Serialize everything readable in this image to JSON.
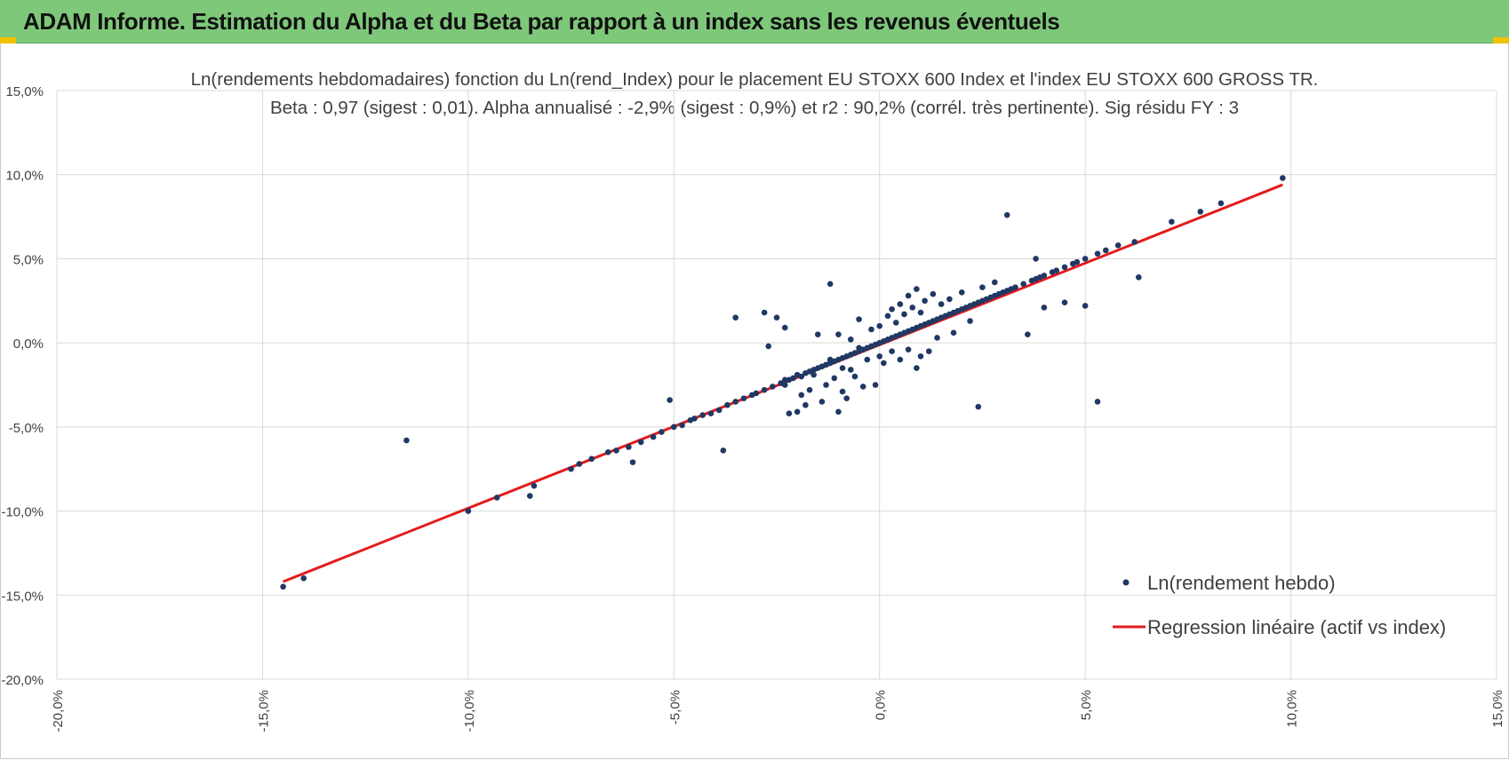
{
  "header": {
    "title": "ADAM Informe. Estimation du Alpha et du Beta par rapport à un index sans les revenus éventuels",
    "banner_color": "#7ec87a",
    "corner_color": "#f2c200"
  },
  "chart_data": {
    "type": "scatter",
    "title": "Ln(rendements hebdomadaires) fonction du Ln(rend_Index) pour le placement EU STOXX 600 Index et l'index EU STOXX 600 GROSS TR.",
    "subtitle": "Beta : 0,97 (sigest : 0,01). Alpha annualisé : -2,9% (sigest : 0,9%) et r2 : 90,2% (corrél. très pertinente). Sig résidu FY : 3",
    "xlabel": "",
    "ylabel": "",
    "xlim": [
      -20,
      15
    ],
    "ylim": [
      -20,
      15
    ],
    "x_ticks": [
      -20,
      -15,
      -10,
      -5,
      0,
      5,
      10,
      15
    ],
    "y_ticks": [
      15,
      10,
      5,
      0,
      -5,
      -10,
      -15,
      -20
    ],
    "x_tick_labels": [
      "-20,0%",
      "-15,0%",
      "-10,0%",
      "-5,0%",
      "0,0%",
      "5,0%",
      "10,0%",
      "15,0%"
    ],
    "y_tick_labels": [
      "15,0%",
      "10,0%",
      "5,0%",
      "0,0%",
      "-5,0%",
      "-10,0%",
      "-15,0%",
      "-20,0%"
    ],
    "grid": true,
    "legend_position": "bottom-right",
    "series": [
      {
        "name": "Ln(rendement hebdo)",
        "kind": "scatter",
        "color": "#203864",
        "points": [
          [
            -14.5,
            -14.5
          ],
          [
            -14.0,
            -14.0
          ],
          [
            -11.5,
            -5.8
          ],
          [
            -10.0,
            -10.0
          ],
          [
            -9.3,
            -9.2
          ],
          [
            -8.5,
            -9.1
          ],
          [
            -8.4,
            -8.5
          ],
          [
            -7.5,
            -7.5
          ],
          [
            -7.3,
            -7.2
          ],
          [
            -7.0,
            -6.9
          ],
          [
            -6.6,
            -6.5
          ],
          [
            -6.4,
            -6.4
          ],
          [
            -6.1,
            -6.2
          ],
          [
            -6.0,
            -7.1
          ],
          [
            -5.8,
            -5.9
          ],
          [
            -5.5,
            -5.6
          ],
          [
            -5.3,
            -5.3
          ],
          [
            -5.1,
            -3.4
          ],
          [
            -5.0,
            -5.0
          ],
          [
            -4.8,
            -4.9
          ],
          [
            -4.6,
            -4.6
          ],
          [
            -4.5,
            -4.5
          ],
          [
            -4.3,
            -4.3
          ],
          [
            -4.1,
            -4.2
          ],
          [
            -3.9,
            -4.0
          ],
          [
            -3.8,
            -6.4
          ],
          [
            -3.7,
            -3.7
          ],
          [
            -3.5,
            -3.5
          ],
          [
            -3.5,
            1.5
          ],
          [
            -3.3,
            -3.3
          ],
          [
            -3.1,
            -3.1
          ],
          [
            -3.0,
            -3.0
          ],
          [
            -2.8,
            1.8
          ],
          [
            -2.8,
            -2.8
          ],
          [
            -2.7,
            -0.2
          ],
          [
            -2.6,
            -2.6
          ],
          [
            -2.5,
            1.5
          ],
          [
            -2.4,
            -2.4
          ],
          [
            -2.3,
            -2.2
          ],
          [
            -2.3,
            -2.5
          ],
          [
            -2.2,
            -2.2
          ],
          [
            -2.2,
            -4.2
          ],
          [
            -2.3,
            0.9
          ],
          [
            -2.1,
            -2.1
          ],
          [
            -2.0,
            -1.9
          ],
          [
            -2.0,
            -4.1
          ],
          [
            -1.9,
            -2.0
          ],
          [
            -1.9,
            -3.1
          ],
          [
            -1.8,
            -1.8
          ],
          [
            -1.8,
            -3.7
          ],
          [
            -1.7,
            -1.7
          ],
          [
            -1.7,
            -2.8
          ],
          [
            -1.6,
            -1.6
          ],
          [
            -1.6,
            -1.9
          ],
          [
            -1.5,
            -1.5
          ],
          [
            -1.5,
            0.5
          ],
          [
            -1.4,
            -1.4
          ],
          [
            -1.4,
            -3.5
          ],
          [
            -1.3,
            -1.3
          ],
          [
            -1.3,
            -2.5
          ],
          [
            -1.2,
            -1.2
          ],
          [
            -1.2,
            -1.0
          ],
          [
            -1.2,
            3.5
          ],
          [
            -1.1,
            -1.1
          ],
          [
            -1.1,
            -2.1
          ],
          [
            -1.0,
            -1.0
          ],
          [
            -1.0,
            -4.1
          ],
          [
            -1.0,
            0.5
          ],
          [
            -0.9,
            -0.9
          ],
          [
            -0.9,
            -2.9
          ],
          [
            -0.9,
            -1.5
          ],
          [
            -0.8,
            -0.8
          ],
          [
            -0.8,
            -3.3
          ],
          [
            -0.7,
            -0.7
          ],
          [
            -0.7,
            -1.6
          ],
          [
            -0.7,
            0.2
          ],
          [
            -0.6,
            -0.6
          ],
          [
            -0.6,
            -2.0
          ],
          [
            -0.5,
            -0.5
          ],
          [
            -0.5,
            -0.3
          ],
          [
            -0.5,
            1.4
          ],
          [
            -0.4,
            -0.4
          ],
          [
            -0.4,
            -2.6
          ],
          [
            -0.3,
            -0.3
          ],
          [
            -0.3,
            -1.0
          ],
          [
            -0.2,
            -0.2
          ],
          [
            -0.2,
            0.8
          ],
          [
            -0.1,
            -0.1
          ],
          [
            -0.1,
            -2.5
          ],
          [
            0.0,
            0.0
          ],
          [
            0.0,
            1.0
          ],
          [
            0.0,
            -0.8
          ],
          [
            0.1,
            0.1
          ],
          [
            0.1,
            -1.2
          ],
          [
            0.2,
            0.2
          ],
          [
            0.2,
            1.6
          ],
          [
            0.3,
            0.3
          ],
          [
            0.3,
            -0.5
          ],
          [
            0.3,
            2.0
          ],
          [
            0.4,
            0.4
          ],
          [
            0.4,
            1.2
          ],
          [
            0.5,
            0.5
          ],
          [
            0.5,
            -1.0
          ],
          [
            0.5,
            2.3
          ],
          [
            0.6,
            0.6
          ],
          [
            0.6,
            1.7
          ],
          [
            0.7,
            0.7
          ],
          [
            0.7,
            2.8
          ],
          [
            0.7,
            -0.4
          ],
          [
            0.8,
            0.8
          ],
          [
            0.8,
            2.1
          ],
          [
            0.9,
            0.9
          ],
          [
            0.9,
            3.2
          ],
          [
            0.9,
            -1.5
          ],
          [
            1.0,
            1.0
          ],
          [
            1.0,
            1.8
          ],
          [
            1.0,
            -0.8
          ],
          [
            1.1,
            1.1
          ],
          [
            1.1,
            2.5
          ],
          [
            1.2,
            1.2
          ],
          [
            1.2,
            -0.5
          ],
          [
            1.3,
            1.3
          ],
          [
            1.3,
            2.9
          ],
          [
            1.4,
            1.4
          ],
          [
            1.4,
            0.3
          ],
          [
            1.5,
            1.5
          ],
          [
            1.5,
            2.3
          ],
          [
            1.6,
            1.6
          ],
          [
            1.7,
            1.7
          ],
          [
            1.7,
            2.6
          ],
          [
            1.8,
            1.8
          ],
          [
            1.8,
            0.6
          ],
          [
            1.9,
            1.9
          ],
          [
            2.0,
            2.0
          ],
          [
            2.0,
            3.0
          ],
          [
            2.1,
            2.1
          ],
          [
            2.2,
            2.2
          ],
          [
            2.2,
            1.3
          ],
          [
            2.3,
            2.3
          ],
          [
            2.4,
            2.4
          ],
          [
            2.4,
            -3.8
          ],
          [
            2.5,
            2.5
          ],
          [
            2.5,
            3.3
          ],
          [
            2.6,
            2.6
          ],
          [
            2.7,
            2.7
          ],
          [
            2.8,
            2.8
          ],
          [
            2.8,
            3.6
          ],
          [
            2.9,
            2.9
          ],
          [
            3.0,
            3.0
          ],
          [
            3.1,
            3.1
          ],
          [
            3.1,
            7.6
          ],
          [
            3.2,
            3.2
          ],
          [
            3.3,
            3.3
          ],
          [
            3.5,
            3.5
          ],
          [
            3.6,
            0.5
          ],
          [
            3.7,
            3.7
          ],
          [
            3.8,
            3.8
          ],
          [
            3.8,
            5.0
          ],
          [
            3.9,
            3.9
          ],
          [
            4.0,
            4.0
          ],
          [
            4.0,
            2.1
          ],
          [
            4.2,
            4.2
          ],
          [
            4.3,
            4.3
          ],
          [
            4.5,
            4.5
          ],
          [
            4.5,
            2.4
          ],
          [
            4.7,
            4.7
          ],
          [
            4.8,
            4.8
          ],
          [
            5.0,
            5.0
          ],
          [
            5.0,
            2.2
          ],
          [
            5.3,
            5.3
          ],
          [
            5.3,
            -3.5
          ],
          [
            5.5,
            5.5
          ],
          [
            5.8,
            5.8
          ],
          [
            6.2,
            6.0
          ],
          [
            6.3,
            3.9
          ],
          [
            7.1,
            7.2
          ],
          [
            7.8,
            7.8
          ],
          [
            8.3,
            8.3
          ],
          [
            9.8,
            9.8
          ]
        ]
      },
      {
        "name": "Regression linéaire (actif vs index)",
        "kind": "line",
        "color": "#e41a1c",
        "points": [
          [
            -14.5,
            -14.2
          ],
          [
            9.8,
            9.4
          ]
        ]
      }
    ]
  }
}
